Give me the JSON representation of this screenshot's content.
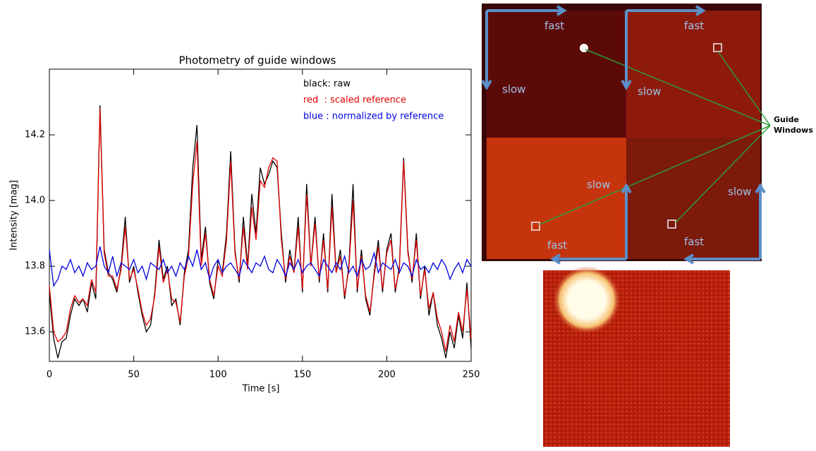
{
  "chart_data": {
    "type": "line",
    "title": "Photometry of guide windows",
    "x_label": "Time [s]",
    "y_label": "Intensity [mag]",
    "x": [
      0,
      2.5,
      5,
      7.5,
      10,
      12.5,
      15,
      17.5,
      20,
      22.5,
      25,
      27.5,
      30,
      32.5,
      35,
      37.5,
      40,
      42.5,
      45,
      47.5,
      50,
      52.5,
      55,
      57.5,
      60,
      62.5,
      65,
      67.5,
      70,
      72.5,
      75,
      77.5,
      80,
      82.5,
      85,
      87.5,
      90,
      92.5,
      95,
      97.5,
      100,
      102.5,
      105,
      107.5,
      110,
      112.5,
      115,
      117.5,
      120,
      122.5,
      125,
      127.5,
      130,
      132.5,
      135,
      137.5,
      140,
      142.5,
      145,
      147.5,
      150,
      152.5,
      155,
      157.5,
      160,
      162.5,
      165,
      167.5,
      170,
      172.5,
      175,
      177.5,
      180,
      182.5,
      185,
      187.5,
      190,
      192.5,
      195,
      197.5,
      200,
      202.5,
      205,
      207.5,
      210,
      212.5,
      215,
      217.5,
      220,
      222.5,
      225,
      227.5,
      230,
      232.5,
      235,
      237.5,
      240,
      242.5,
      245,
      247.5,
      250
    ],
    "series": [
      {
        "name": "black: raw",
        "color": "#000000",
        "values": [
          13.72,
          13.58,
          13.52,
          13.57,
          13.58,
          13.65,
          13.7,
          13.68,
          13.7,
          13.66,
          13.75,
          13.7,
          14.29,
          13.85,
          13.78,
          13.76,
          13.72,
          13.8,
          13.95,
          13.75,
          13.8,
          13.72,
          13.65,
          13.6,
          13.62,
          13.72,
          13.88,
          13.76,
          13.8,
          13.68,
          13.7,
          13.62,
          13.78,
          13.85,
          14.1,
          14.23,
          13.82,
          13.92,
          13.75,
          13.7,
          13.82,
          13.78,
          13.9,
          14.15,
          13.85,
          13.75,
          13.95,
          13.8,
          14.02,
          13.9,
          14.1,
          14.05,
          14.08,
          14.12,
          14.1,
          13.9,
          13.75,
          13.85,
          13.78,
          13.95,
          13.72,
          14.05,
          13.8,
          13.95,
          13.75,
          13.9,
          13.72,
          14.02,
          13.78,
          13.85,
          13.7,
          13.8,
          14.05,
          13.72,
          13.85,
          13.7,
          13.65,
          13.78,
          13.88,
          13.72,
          13.85,
          13.9,
          13.72,
          13.8,
          14.13,
          13.85,
          13.75,
          13.9,
          13.7,
          13.8,
          13.65,
          13.72,
          13.62,
          13.58,
          13.52,
          13.6,
          13.55,
          13.65,
          13.58,
          13.75,
          13.55
        ]
      },
      {
        "name": "red  : scaled reference",
        "color": "#e00000",
        "values": [
          13.74,
          13.6,
          13.57,
          13.58,
          13.6,
          13.67,
          13.71,
          13.69,
          13.7,
          13.68,
          13.76,
          13.72,
          14.28,
          13.84,
          13.77,
          13.77,
          13.73,
          13.79,
          13.92,
          13.76,
          13.79,
          13.73,
          13.66,
          13.62,
          13.64,
          13.71,
          13.86,
          13.75,
          13.79,
          13.7,
          13.69,
          13.63,
          13.77,
          13.83,
          14.05,
          14.18,
          13.8,
          13.9,
          13.76,
          13.71,
          13.8,
          13.77,
          13.88,
          14.12,
          13.84,
          13.76,
          13.92,
          13.79,
          13.98,
          13.88,
          14.06,
          14.04,
          14.1,
          14.13,
          14.12,
          13.88,
          13.76,
          13.83,
          13.78,
          13.92,
          13.73,
          14.02,
          13.8,
          13.93,
          13.76,
          13.88,
          13.73,
          13.98,
          13.78,
          13.83,
          13.71,
          13.79,
          14.0,
          13.73,
          13.83,
          13.71,
          13.66,
          13.77,
          13.86,
          13.73,
          13.84,
          13.88,
          13.73,
          13.79,
          14.12,
          13.84,
          13.76,
          13.88,
          13.71,
          13.79,
          13.67,
          13.72,
          13.64,
          13.6,
          13.54,
          13.62,
          13.57,
          13.66,
          13.6,
          13.73,
          13.58
        ]
      },
      {
        "name": "blue : normalized by reference",
        "color": "#0000e0",
        "values": [
          13.85,
          13.74,
          13.76,
          13.8,
          13.79,
          13.82,
          13.78,
          13.8,
          13.77,
          13.81,
          13.79,
          13.8,
          13.86,
          13.8,
          13.78,
          13.83,
          13.77,
          13.81,
          13.8,
          13.79,
          13.82,
          13.78,
          13.8,
          13.76,
          13.81,
          13.8,
          13.79,
          13.82,
          13.78,
          13.8,
          13.77,
          13.81,
          13.79,
          13.83,
          13.8,
          13.85,
          13.79,
          13.81,
          13.76,
          13.8,
          13.82,
          13.78,
          13.8,
          13.81,
          13.79,
          13.77,
          13.82,
          13.8,
          13.78,
          13.81,
          13.8,
          13.83,
          13.79,
          13.78,
          13.82,
          13.8,
          13.77,
          13.81,
          13.79,
          13.82,
          13.78,
          13.8,
          13.81,
          13.79,
          13.77,
          13.82,
          13.8,
          13.78,
          13.81,
          13.79,
          13.83,
          13.78,
          13.8,
          13.77,
          13.82,
          13.79,
          13.8,
          13.84,
          13.78,
          13.81,
          13.8,
          13.79,
          13.82,
          13.78,
          13.81,
          13.8,
          13.77,
          13.82,
          13.79,
          13.8,
          13.78,
          13.81,
          13.79,
          13.82,
          13.8,
          13.76,
          13.79,
          13.81,
          13.78,
          13.82,
          13.8
        ]
      }
    ],
    "xlim": [
      0,
      250
    ],
    "xticks": [
      0,
      50,
      100,
      150,
      200,
      250
    ],
    "ylim": [
      13.51,
      14.4
    ],
    "yticks": [
      13.6,
      13.8,
      {
        "value": 14,
        "label": "14.0"
      },
      14.2
    ],
    "legend": "upper right"
  },
  "diagram": {
    "labels": [
      "fast",
      "fast",
      "slow",
      "slow",
      "slow",
      "slow",
      "fast",
      "fast"
    ],
    "callout": [
      "Guide",
      "Windows"
    ]
  }
}
